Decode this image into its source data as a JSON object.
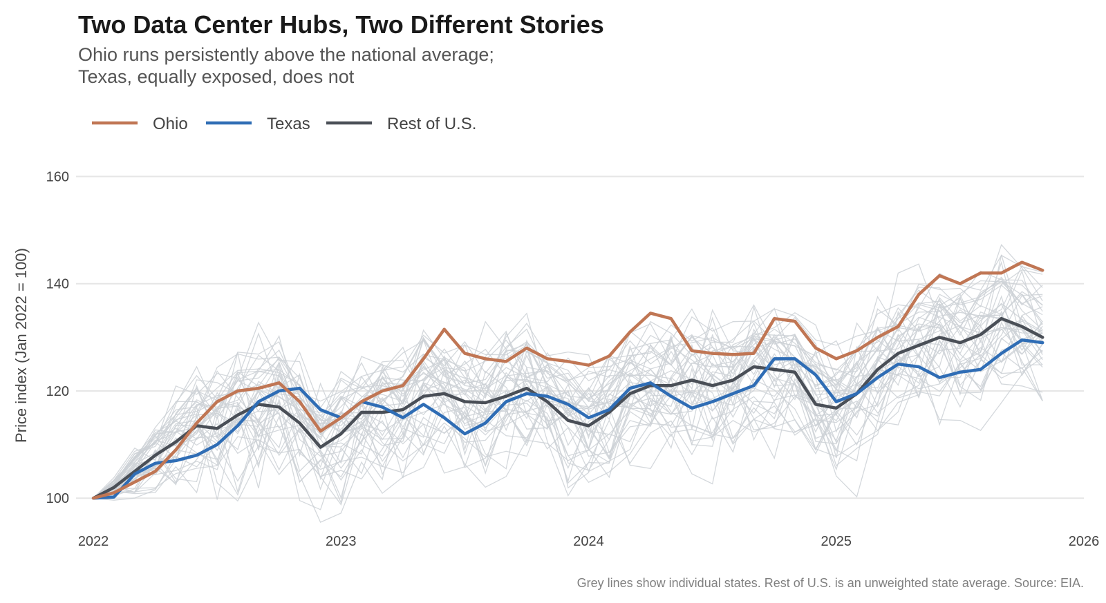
{
  "chart_data": {
    "type": "line",
    "title": "Two Data Center Hubs, Two Different Stories",
    "subtitle": [
      "Ohio runs persistently above the national average;",
      "Texas, equally exposed, does not"
    ],
    "ylabel": "Price index (Jan 2022 = 100)",
    "xlabel": "",
    "ylim": [
      95,
      162
    ],
    "xlim": [
      2021.93,
      2026
    ],
    "y_ticks": [
      100,
      120,
      140,
      160
    ],
    "x_ticks": [
      2022,
      2023,
      2024,
      2025,
      2026
    ],
    "grid": true,
    "legend_position": "top-left",
    "caption": "Grey lines show individual states. Rest of U.S. is an unweighted state average. Source: EIA.",
    "x": [
      2022.0,
      2022.083,
      2022.167,
      2022.25,
      2022.333,
      2022.417,
      2022.5,
      2022.583,
      2022.667,
      2022.75,
      2022.833,
      2022.917,
      2023.0,
      2023.083,
      2023.167,
      2023.25,
      2023.333,
      2023.417,
      2023.5,
      2023.583,
      2023.667,
      2023.75,
      2023.833,
      2023.917,
      2024.0,
      2024.083,
      2024.167,
      2024.25,
      2024.333,
      2024.417,
      2024.5,
      2024.583,
      2024.667,
      2024.75,
      2024.833,
      2024.917,
      2025.0,
      2025.083,
      2025.167,
      2025.25,
      2025.333,
      2025.417,
      2025.5,
      2025.583,
      2025.667,
      2025.75,
      2025.833
    ],
    "series": [
      {
        "name": "Ohio",
        "color": "#c07654",
        "values": [
          100,
          101,
          103,
          105,
          109,
          114,
          118,
          120,
          120.5,
          121.5,
          118,
          112.5,
          115,
          118,
          120,
          121,
          126,
          131.5,
          127,
          126,
          125.5,
          128,
          126,
          125.5,
          124.8,
          126.5,
          131,
          134.5,
          133.5,
          127.5,
          127,
          126.8,
          127,
          133.5,
          133,
          128,
          126,
          127.5,
          130,
          132,
          138,
          141.5,
          140,
          142,
          142,
          144,
          142.5
        ]
      },
      {
        "name": "Texas",
        "color": "#2f6db5",
        "values": [
          100,
          100.2,
          104.5,
          106.5,
          107,
          108,
          110,
          113.5,
          118,
          120,
          120.5,
          116.5,
          115,
          118,
          117,
          115,
          117.5,
          115,
          112,
          114,
          118,
          119.5,
          119,
          117.5,
          115,
          116.5,
          120.5,
          121.5,
          119,
          116.8,
          118,
          119.5,
          121,
          126,
          126,
          123,
          118,
          119.5,
          122.5,
          125,
          124.5,
          122.5,
          123.5,
          124,
          127,
          129.5,
          129
        ]
      },
      {
        "name": "Rest of U.S.",
        "color": "#4a4f57",
        "values": [
          100,
          102,
          105,
          108,
          110.5,
          113.5,
          113,
          115.5,
          117.5,
          117,
          114,
          109.5,
          112,
          116,
          116,
          116.5,
          119,
          119.5,
          118,
          117.8,
          119,
          120.5,
          118,
          114.5,
          113.5,
          116,
          119.5,
          121,
          121,
          122,
          121,
          122,
          124.5,
          124,
          123.5,
          117.5,
          116.8,
          119.5,
          124,
          127,
          128.5,
          130,
          129,
          130.5,
          133.5,
          132,
          130
        ]
      }
    ]
  }
}
